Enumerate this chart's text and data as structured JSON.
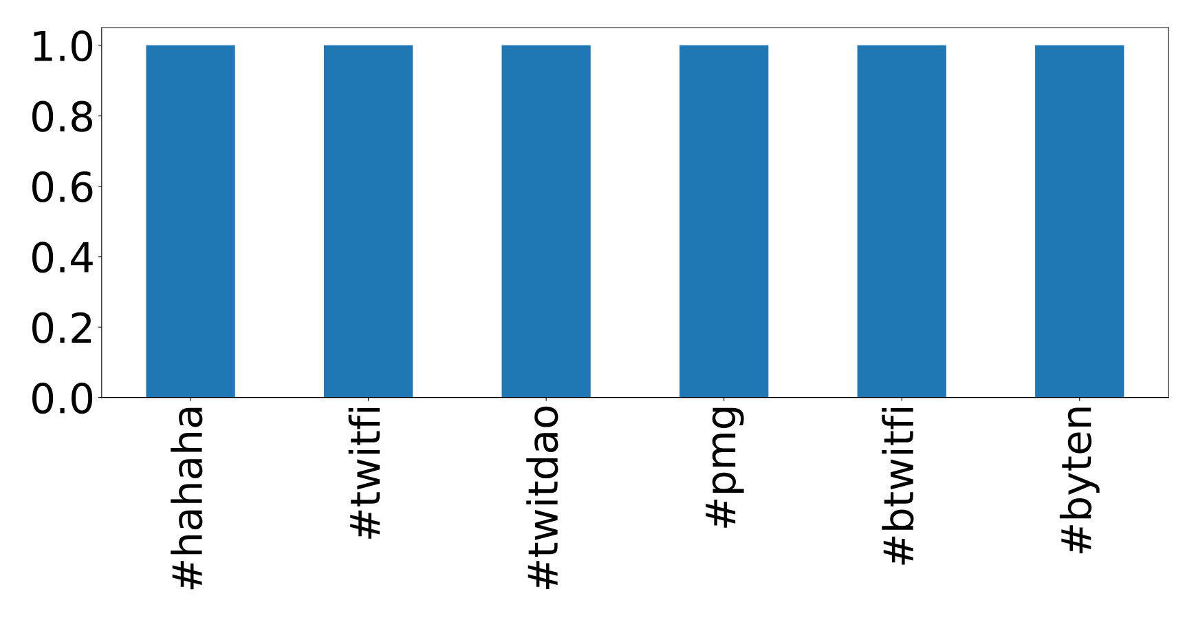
{
  "chart_data": {
    "type": "bar",
    "categories": [
      "#hahaha",
      "#twitfi",
      "#twitdao",
      "#pmg",
      "#btwitfi",
      "#byten"
    ],
    "values": [
      1.0,
      1.0,
      1.0,
      1.0,
      1.0,
      1.0
    ],
    "color": "#1f77b4",
    "ylim": [
      0,
      1.05
    ],
    "yticks": [
      {
        "value": 0,
        "label": "0.0"
      },
      {
        "value": 0.2,
        "label": "0.2"
      },
      {
        "value": 0.4,
        "label": "0.4"
      },
      {
        "value": 0.6,
        "label": "0.6"
      },
      {
        "value": 0.8,
        "label": "0.8"
      },
      {
        "value": 1.0,
        "label": "1.0"
      }
    ],
    "grid": false,
    "legend": false
  }
}
